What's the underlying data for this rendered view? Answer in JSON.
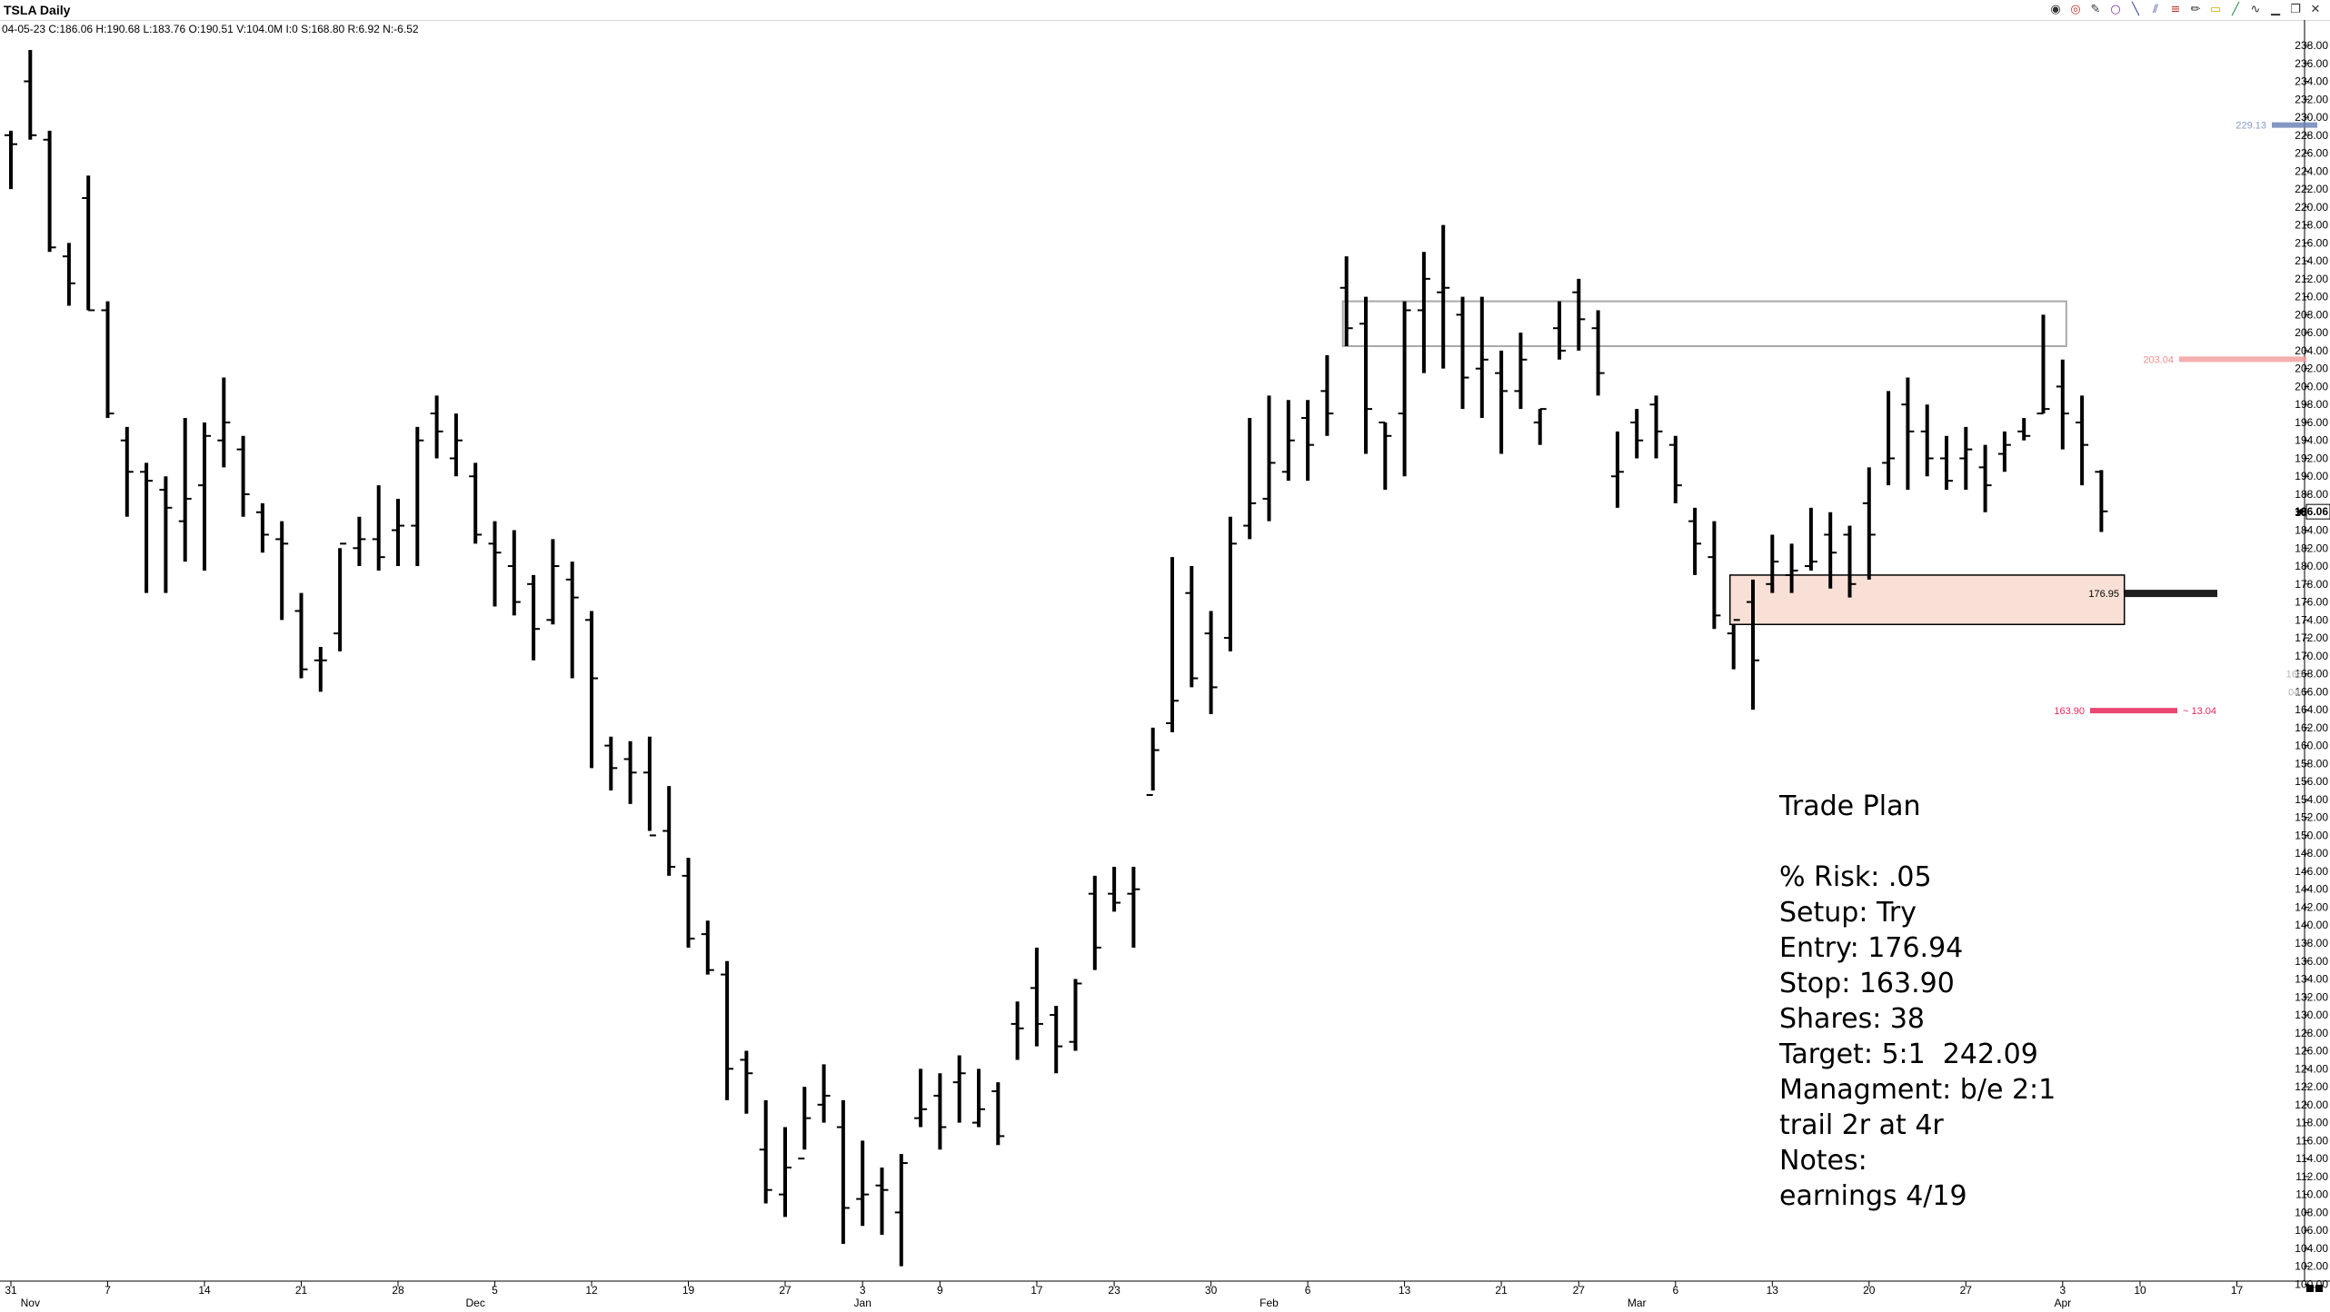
{
  "window": {
    "title": "TSLA Daily",
    "ohlc_readout": "04-05-23 C:186.06 H:190.68 L:183.76 O:190.51 V:104.0M I:0 S:168.80 R:6.92 N:-6.52",
    "toolbar_icons": [
      "globe-icon",
      "target-icon",
      "cursor-tool-icon",
      "circle-tool-icon",
      "line-tool-icon",
      "channel-tool-icon",
      "fib-tool-icon",
      "pencil-tool-icon",
      "rectangle-tool-icon",
      "trendline-tool-icon",
      "wave-tool-icon",
      "minimize-icon",
      "restore-icon",
      "close-icon"
    ]
  },
  "axis": {
    "price_min": 100,
    "price_max": 238,
    "tick_step": 2,
    "last_price_label": "186.06",
    "faded_right_label_top": "168",
    "faded_right_label_bottom": "04-"
  },
  "x_axis": {
    "labels": [
      {
        "text": "31",
        "bar": 0
      },
      {
        "text": "Nov",
        "bar": 1,
        "month": true
      },
      {
        "text": "7",
        "bar": 5
      },
      {
        "text": "14",
        "bar": 10
      },
      {
        "text": "21",
        "bar": 15
      },
      {
        "text": "28",
        "bar": 20
      },
      {
        "text": "5",
        "bar": 25
      },
      {
        "text": "Dec",
        "bar": 24,
        "month": true
      },
      {
        "text": "12",
        "bar": 30
      },
      {
        "text": "19",
        "bar": 35
      },
      {
        "text": "27",
        "bar": 40
      },
      {
        "text": "3",
        "bar": 44
      },
      {
        "text": "Jan",
        "bar": 44,
        "month": true
      },
      {
        "text": "9",
        "bar": 48
      },
      {
        "text": "17",
        "bar": 53
      },
      {
        "text": "23",
        "bar": 57
      },
      {
        "text": "30",
        "bar": 62
      },
      {
        "text": "6",
        "bar": 67
      },
      {
        "text": "Feb",
        "bar": 65,
        "month": true
      },
      {
        "text": "13",
        "bar": 72
      },
      {
        "text": "21",
        "bar": 77
      },
      {
        "text": "27",
        "bar": 81
      },
      {
        "text": "6",
        "bar": 86
      },
      {
        "text": "Mar",
        "bar": 84,
        "month": true
      },
      {
        "text": "13",
        "bar": 91
      },
      {
        "text": "20",
        "bar": 96
      },
      {
        "text": "27",
        "bar": 101
      },
      {
        "text": "3",
        "bar": 106
      },
      {
        "text": "Apr",
        "bar": 106,
        "month": true
      },
      {
        "text": "10",
        "bar": 110
      },
      {
        "text": "17",
        "bar": 115
      }
    ]
  },
  "levels": [
    {
      "name": "target-level",
      "value": 229.13,
      "label": "229.13",
      "color": "#6f86b8",
      "label_color": "#8a9cc4"
    },
    {
      "name": "resistance-level",
      "value": 203.04,
      "label": "203.04",
      "color": "#f3a0a0",
      "label_color": "#f08c8c"
    },
    {
      "name": "entry-level",
      "value": 176.95,
      "label": "176.95",
      "color": "#111111",
      "label_color": "#000000"
    },
    {
      "name": "stop-level",
      "value": 163.9,
      "label": "163.90",
      "color": "#e8285a",
      "label_color": "#e8285a",
      "suffix": "~ 13.04"
    }
  ],
  "zones": {
    "resistance_zone": {
      "top": 209.5,
      "bottom": 204.5,
      "from_bar": 69,
      "to_bar": 106,
      "stroke": "#a8a8a8",
      "fill": "none"
    },
    "entry_zone": {
      "top": 179.0,
      "bottom": 173.5,
      "from_bar": 89,
      "to_bar": 109,
      "stroke": "#000000",
      "fill": "#f9e0d6"
    }
  },
  "trade_plan": {
    "lines": [
      "Trade Plan",
      "",
      "% Risk: .05",
      "Setup: Try",
      "Entry: 176.94",
      "Stop: 163.90",
      "Shares: 38",
      "Target: 5:1  242.09",
      "Managment: b/e 2:1",
      "trail 2r at 4r",
      "Notes:",
      "earnings 4/19"
    ]
  },
  "chart_data": {
    "type": "ohlc",
    "symbol": "TSLA",
    "ohlc": [
      [
        228.0,
        228.5,
        222.0,
        227.0
      ],
      [
        234.0,
        237.5,
        227.5,
        228.0
      ],
      [
        227.5,
        228.5,
        215.0,
        215.5
      ],
      [
        214.5,
        216.0,
        209.0,
        211.5
      ],
      [
        221.0,
        223.5,
        208.5,
        208.5
      ],
      [
        208.5,
        209.5,
        196.5,
        197.0
      ],
      [
        194.0,
        195.5,
        185.5,
        190.5
      ],
      [
        190.5,
        191.5,
        177.0,
        189.5
      ],
      [
        188.5,
        190.0,
        177.0,
        186.5
      ],
      [
        185.0,
        196.5,
        180.5,
        187.5
      ],
      [
        189.0,
        196.0,
        179.5,
        194.5
      ],
      [
        194.0,
        201.0,
        191.0,
        196.0
      ],
      [
        193.0,
        194.5,
        185.5,
        188.0
      ],
      [
        186.0,
        187.0,
        181.5,
        183.5
      ],
      [
        183.0,
        185.0,
        174.0,
        182.5
      ],
      [
        175.0,
        177.0,
        167.5,
        168.5
      ],
      [
        169.5,
        171.0,
        166.0,
        169.5
      ],
      [
        172.5,
        182.0,
        170.5,
        182.5
      ],
      [
        182.0,
        185.5,
        180.0,
        183.0
      ],
      [
        183.0,
        189.0,
        179.5,
        181.0
      ],
      [
        184.0,
        187.5,
        180.0,
        184.5
      ],
      [
        184.5,
        195.5,
        180.0,
        194.0
      ],
      [
        197.0,
        199.0,
        192.0,
        195.0
      ],
      [
        192.0,
        197.0,
        190.0,
        194.0
      ],
      [
        190.0,
        191.5,
        182.5,
        183.5
      ],
      [
        182.5,
        185.0,
        175.5,
        181.5
      ],
      [
        180.0,
        184.0,
        174.5,
        176.0
      ],
      [
        178.0,
        179.0,
        169.5,
        173.0
      ],
      [
        174.0,
        183.0,
        173.5,
        180.0
      ],
      [
        178.5,
        180.5,
        167.5,
        176.5
      ],
      [
        174.0,
        175.0,
        157.5,
        167.5
      ],
      [
        160.0,
        161.0,
        155.0,
        157.5
      ],
      [
        158.5,
        160.5,
        153.5,
        157.0
      ],
      [
        157.0,
        161.0,
        150.5,
        150.0
      ],
      [
        150.5,
        155.5,
        145.5,
        146.5
      ],
      [
        145.5,
        147.5,
        137.5,
        138.5
      ],
      [
        139.0,
        140.5,
        134.5,
        135.0
      ],
      [
        134.5,
        136.0,
        120.5,
        124.0
      ],
      [
        125.0,
        126.0,
        119.0,
        123.5
      ],
      [
        115.0,
        120.5,
        109.0,
        110.5
      ],
      [
        110.0,
        117.5,
        107.5,
        113.0
      ],
      [
        114.0,
        122.0,
        115.0,
        118.5
      ],
      [
        120.0,
        124.5,
        118.0,
        121.0
      ],
      [
        117.5,
        120.5,
        104.5,
        108.5
      ],
      [
        109.5,
        116.0,
        106.5,
        110.0
      ],
      [
        111.0,
        113.0,
        105.5,
        110.5
      ],
      [
        108.0,
        114.5,
        102.0,
        113.5
      ],
      [
        118.5,
        124.0,
        117.5,
        119.5
      ],
      [
        121.0,
        123.5,
        115.0,
        117.5
      ],
      [
        122.5,
        125.5,
        118.0,
        123.5
      ],
      [
        118.0,
        124.0,
        117.5,
        119.5
      ],
      [
        121.5,
        122.5,
        115.5,
        116.5
      ],
      [
        129.0,
        131.5,
        125.0,
        128.5
      ],
      [
        133.0,
        137.5,
        126.5,
        129.0
      ],
      [
        130.0,
        131.0,
        123.5,
        126.5
      ],
      [
        127.0,
        134.0,
        126.0,
        133.5
      ],
      [
        143.5,
        145.5,
        135.0,
        137.5
      ],
      [
        143.5,
        146.5,
        141.5,
        142.5
      ],
      [
        143.5,
        146.5,
        137.5,
        144.0
      ],
      [
        154.5,
        162.0,
        155.0,
        159.5
      ],
      [
        162.5,
        181.0,
        161.5,
        165.0
      ],
      [
        177.0,
        180.0,
        166.5,
        167.5
      ],
      [
        172.5,
        175.0,
        163.5,
        166.5
      ],
      [
        172.0,
        185.5,
        170.5,
        182.5
      ],
      [
        184.5,
        196.5,
        183.0,
        187.0
      ],
      [
        187.5,
        199.0,
        185.0,
        191.5
      ],
      [
        190.5,
        198.5,
        189.5,
        194.0
      ],
      [
        196.5,
        198.5,
        189.5,
        193.5
      ],
      [
        199.5,
        203.5,
        194.5,
        197.0
      ],
      [
        211.0,
        214.5,
        204.5,
        206.5
      ],
      [
        207.0,
        210.0,
        192.5,
        197.5
      ],
      [
        196.0,
        196.0,
        188.5,
        194.5
      ],
      [
        197.0,
        209.5,
        190.0,
        208.5
      ],
      [
        208.5,
        215.0,
        201.5,
        212.0
      ],
      [
        210.5,
        218.0,
        202.0,
        211.0
      ],
      [
        208.0,
        210.0,
        197.5,
        201.0
      ],
      [
        202.0,
        210.0,
        196.5,
        203.0
      ],
      [
        201.5,
        204.0,
        192.5,
        199.5
      ],
      [
        199.5,
        206.0,
        197.5,
        203.0
      ],
      [
        196.0,
        197.5,
        193.5,
        197.5
      ],
      [
        206.5,
        209.5,
        203.0,
        204.0
      ],
      [
        210.5,
        212.0,
        204.0,
        207.5
      ],
      [
        206.5,
        208.5,
        199.0,
        201.5
      ],
      [
        190.0,
        195.0,
        186.5,
        190.5
      ],
      [
        196.0,
        197.5,
        192.0,
        194.0
      ],
      [
        198.0,
        199.0,
        192.0,
        195.0
      ],
      [
        193.5,
        194.5,
        187.0,
        189.0
      ],
      [
        185.0,
        186.5,
        179.0,
        182.5
      ],
      [
        181.0,
        185.0,
        173.0,
        174.5
      ],
      [
        172.5,
        173.5,
        168.5,
        174.0
      ],
      [
        176.0,
        178.5,
        164.0,
        169.5
      ],
      [
        178.0,
        183.5,
        177.0,
        180.5
      ],
      [
        179.0,
        182.5,
        177.0,
        179.5
      ],
      [
        180.0,
        186.5,
        179.5,
        180.5
      ],
      [
        183.5,
        186.0,
        177.5,
        181.5
      ],
      [
        183.5,
        184.5,
        176.5,
        178.0
      ],
      [
        187.0,
        191.0,
        178.5,
        183.5
      ],
      [
        191.5,
        199.5,
        189.0,
        192.0
      ],
      [
        198.0,
        201.0,
        188.5,
        195.0
      ],
      [
        195.0,
        198.0,
        190.0,
        192.0
      ],
      [
        192.0,
        194.5,
        188.5,
        189.5
      ],
      [
        192.0,
        195.5,
        188.5,
        193.0
      ],
      [
        191.0,
        193.5,
        186.0,
        189.0
      ],
      [
        192.5,
        195.0,
        190.5,
        193.5
      ],
      [
        195.0,
        196.5,
        194.0,
        194.5
      ],
      [
        197.0,
        208.0,
        197.0,
        197.5
      ],
      [
        200.0,
        203.0,
        193.0,
        197.0
      ],
      [
        196.0,
        199.0,
        189.0,
        193.5
      ],
      [
        190.5,
        190.7,
        183.8,
        186.1
      ]
    ]
  }
}
